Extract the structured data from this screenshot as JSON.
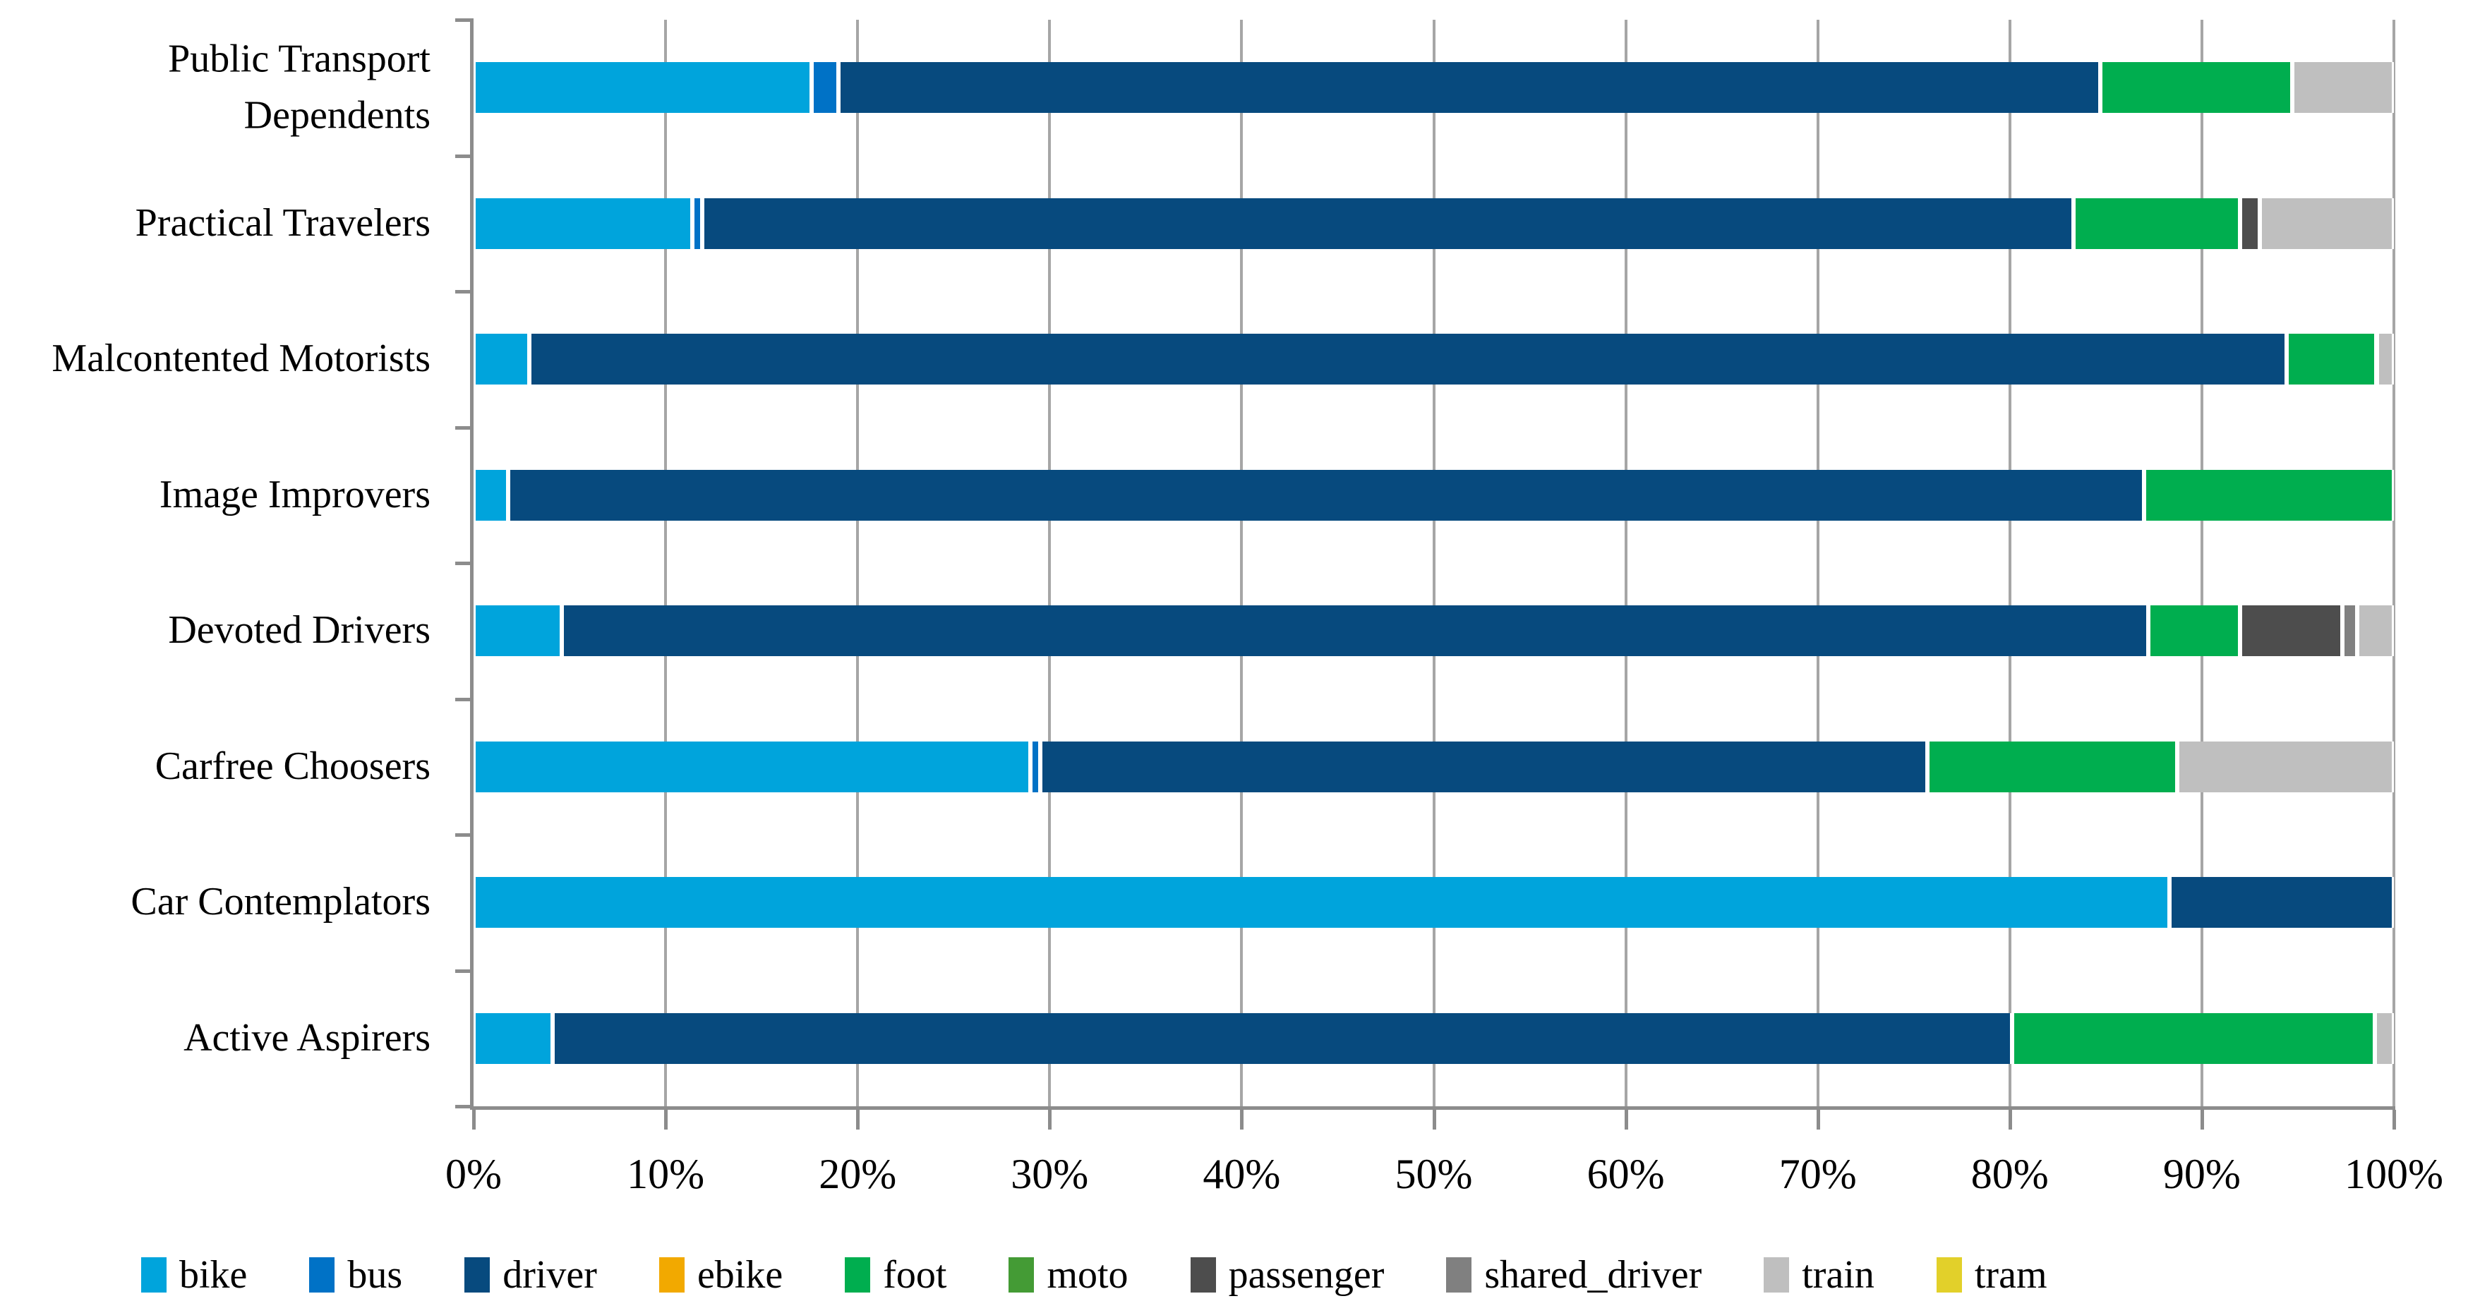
{
  "figure": {
    "background_color": "#FFFFFF",
    "gridline_color": "#A6A6A6",
    "axis_color": "#8C8C8C",
    "text_color": "#000000"
  },
  "chart_data": {
    "type": "bar",
    "orientation": "horizontal",
    "stacked": true,
    "unit": "percent",
    "title": "",
    "xlabel": "",
    "ylabel": "",
    "xlim": [
      0,
      100
    ],
    "grid": true,
    "legend_position": "bottom",
    "x_ticks": [
      "0%",
      "10%",
      "20%",
      "30%",
      "40%",
      "50%",
      "60%",
      "70%",
      "80%",
      "90%",
      "100%"
    ],
    "categories": [
      "Public Transport Dependents",
      "Practical Travelers",
      "Malcontented Motorists",
      "Image Improvers",
      "Devoted Drivers",
      "Carfree Choosers",
      "Car Contemplators",
      "Active Aspirers"
    ],
    "colors": {
      "bike": "#00A4DC",
      "bus": "#0072C6",
      "driver": "#074A7E",
      "ebike": "#F2A900",
      "foot": "#00AE4F",
      "moto": "#449B35",
      "passenger": "#4D4D4D",
      "shared_driver": "#808080",
      "train": "#BFBFBF",
      "tram": "#E2D02A"
    },
    "series": [
      {
        "name": "bike",
        "values": [
          17.6,
          11.4,
          2.9,
          1.8,
          4.6,
          29.0,
          88.3,
          4.1
        ]
      },
      {
        "name": "bus",
        "values": [
          1.4,
          0.5,
          0.0,
          0.0,
          0.0,
          0.5,
          0.0,
          0.0
        ]
      },
      {
        "name": "driver",
        "values": [
          65.7,
          71.4,
          91.5,
          85.2,
          82.6,
          46.2,
          11.7,
          76.0
        ]
      },
      {
        "name": "ebike",
        "values": [
          0.0,
          0.0,
          0.0,
          0.0,
          0.0,
          0.0,
          0.0,
          0.0
        ]
      },
      {
        "name": "foot",
        "values": [
          10.0,
          8.7,
          4.7,
          13.0,
          4.8,
          13.0,
          0.0,
          18.9
        ]
      },
      {
        "name": "moto",
        "values": [
          0.0,
          0.0,
          0.0,
          0.0,
          0.0,
          0.0,
          0.0,
          0.0
        ]
      },
      {
        "name": "passenger",
        "values": [
          0.0,
          1.0,
          0.0,
          0.0,
          5.3,
          0.0,
          0.0,
          0.0
        ]
      },
      {
        "name": "shared_driver",
        "values": [
          0.0,
          0.0,
          0.0,
          0.0,
          0.8,
          0.0,
          0.0,
          0.0
        ]
      },
      {
        "name": "train",
        "values": [
          5.3,
          7.0,
          0.9,
          0.0,
          1.9,
          11.3,
          0.0,
          1.0
        ]
      },
      {
        "name": "tram",
        "values": [
          0.0,
          0.0,
          0.0,
          0.0,
          0.0,
          0.0,
          0.0,
          0.0
        ]
      }
    ],
    "legend_labels": [
      "bike",
      "bus",
      "driver",
      "ebike",
      "foot",
      "moto",
      "passenger",
      "shared_driver",
      "train",
      "tram"
    ]
  }
}
